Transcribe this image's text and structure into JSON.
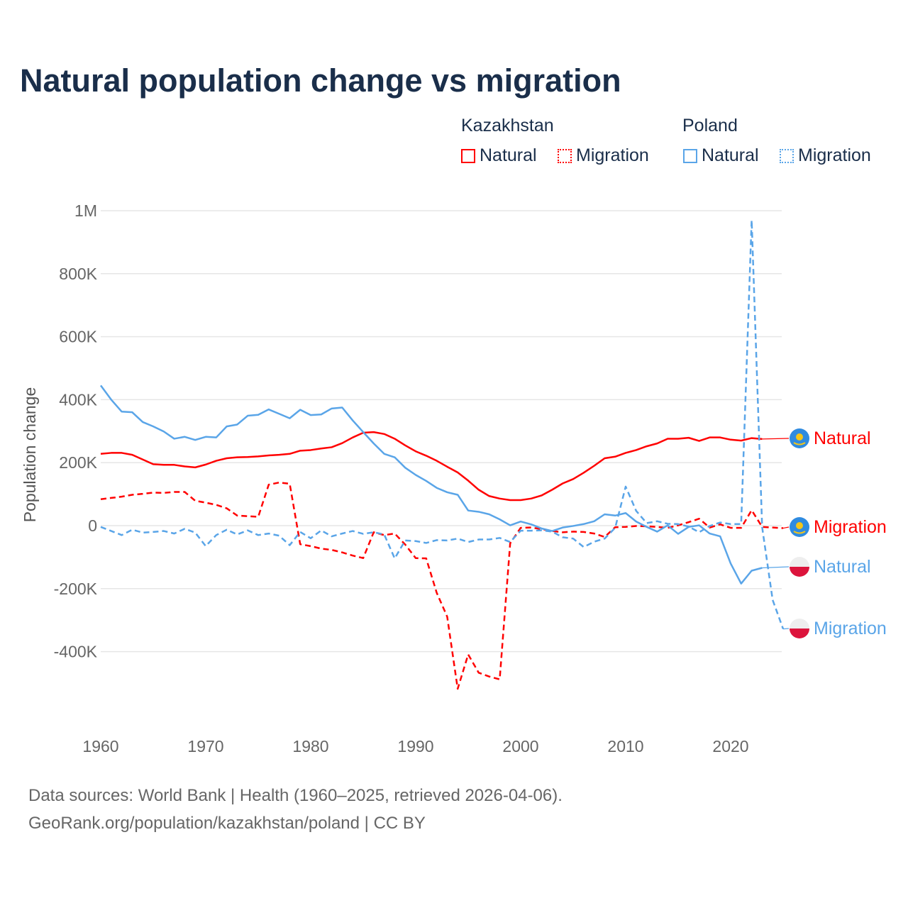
{
  "title": "Natural population change vs migration",
  "legend": {
    "groups": [
      {
        "name": "Kazakhstan",
        "items": [
          {
            "label": "Natural",
            "color": "#ff0000",
            "style": "solid"
          },
          {
            "label": "Migration",
            "color": "#ff0000",
            "style": "dotted"
          }
        ]
      },
      {
        "name": "Poland",
        "items": [
          {
            "label": "Natural",
            "color": "#5aa5e8",
            "style": "solid"
          },
          {
            "label": "Migration",
            "color": "#5aa5e8",
            "style": "dotted"
          }
        ]
      }
    ]
  },
  "footer": {
    "line1": "Data sources: World Bank | Health (1960–2025, retrieved 2026-04-06).",
    "line2": "GeoRank.org/population/kazakhstan/poland | CC BY"
  },
  "chart_data": {
    "type": "line",
    "title": "Natural population change vs migration",
    "xlabel": "",
    "ylabel": "Population change",
    "xlim": [
      1960,
      2025
    ],
    "ylim": [
      -550000,
      1000000
    ],
    "x_ticks": [
      1960,
      1970,
      1980,
      1990,
      2000,
      2010,
      2020
    ],
    "y_ticks": [
      {
        "v": 1000000,
        "label": "1M"
      },
      {
        "v": 800000,
        "label": "800K"
      },
      {
        "v": 600000,
        "label": "600K"
      },
      {
        "v": 400000,
        "label": "400K"
      },
      {
        "v": 200000,
        "label": "200K"
      },
      {
        "v": 0,
        "label": "0"
      },
      {
        "v": -200000,
        "label": "-200K"
      },
      {
        "v": -400000,
        "label": "-400K"
      }
    ],
    "grid": true,
    "legend_position": "top-right",
    "series": [
      {
        "name": "Kazakhstan Natural",
        "end_label": "Natural",
        "flag": "kazakhstan",
        "color": "#ff0000",
        "dash": false,
        "start": 1960,
        "values": [
          228,
          231,
          231,
          225,
          210,
          195,
          193,
          193,
          188,
          185,
          194,
          206,
          214,
          217,
          218,
          220,
          223,
          225,
          228,
          238,
          240,
          245,
          249,
          262,
          280,
          295,
          297,
          291,
          276,
          255,
          236,
          222,
          206,
          187,
          169,
          143,
          114,
          94,
          86,
          81,
          81,
          86,
          96,
          114,
          134,
          148,
          168,
          190,
          214,
          219,
          231,
          240,
          252,
          261,
          276,
          276,
          279,
          269,
          280,
          280,
          273,
          270,
          278,
          275
        ]
      },
      {
        "name": "Kazakhstan Migration",
        "end_label": "Migration",
        "flag": "kazakhstan",
        "color": "#ff0000",
        "dash": true,
        "start": 1960,
        "values": [
          84,
          88,
          92,
          98,
          101,
          105,
          104,
          107,
          107,
          79,
          73,
          66,
          55,
          32,
          30,
          28,
          130,
          137,
          133,
          -59,
          -65,
          -73,
          -77,
          -85,
          -95,
          -103,
          -21,
          -30,
          -25,
          -60,
          -103,
          -104,
          -213,
          -289,
          -518,
          -409,
          -467,
          -479,
          -488,
          -56,
          -7,
          -6,
          -11,
          -17,
          -21,
          -19,
          -20,
          -25,
          -36,
          -5,
          -4,
          -1,
          -2,
          -4,
          -7,
          1,
          11,
          22,
          -6,
          4,
          -7,
          -7,
          49,
          -4,
          -6,
          -8
        ]
      },
      {
        "name": "Poland Natural",
        "end_label": "Natural",
        "flag": "poland",
        "color": "#5aa5e8",
        "dash": false,
        "start": 1960,
        "values": [
          445,
          400,
          362,
          360,
          329,
          315,
          299,
          276,
          282,
          272,
          282,
          280,
          315,
          321,
          349,
          352,
          369,
          355,
          341,
          368,
          351,
          353,
          372,
          375,
          334,
          297,
          261,
          228,
          217,
          184,
          161,
          142,
          120,
          106,
          98,
          48,
          44,
          36,
          20,
          1,
          13,
          4,
          -9,
          -17,
          -6,
          -1,
          5,
          14,
          36,
          32,
          40,
          13,
          -4,
          -19,
          1,
          -26,
          -4,
          1,
          -25,
          -34,
          -120,
          -184,
          -143,
          -134
        ]
      },
      {
        "name": "Poland Migration",
        "end_label": "Migration",
        "flag": "poland",
        "color": "#5aa5e8",
        "dash": true,
        "start": 1960,
        "values": [
          -4,
          -17,
          -30,
          -13,
          -22,
          -20,
          -17,
          -25,
          -10,
          -22,
          -65,
          -30,
          -13,
          -28,
          -15,
          -30,
          -25,
          -32,
          -62,
          -20,
          -40,
          -15,
          -34,
          -25,
          -17,
          -26,
          -21,
          -28,
          -104,
          -47,
          -49,
          -55,
          -46,
          -47,
          -41,
          -52,
          -44,
          -44,
          -39,
          -52,
          -16,
          -16,
          -15,
          -19,
          -37,
          -41,
          -68,
          -51,
          -41,
          -7,
          124,
          47,
          8,
          14,
          6,
          5,
          -3,
          -21,
          -1,
          10,
          5,
          5,
          970,
          -5,
          -236,
          -328
        ]
      }
    ],
    "value_unit": "thousands"
  }
}
